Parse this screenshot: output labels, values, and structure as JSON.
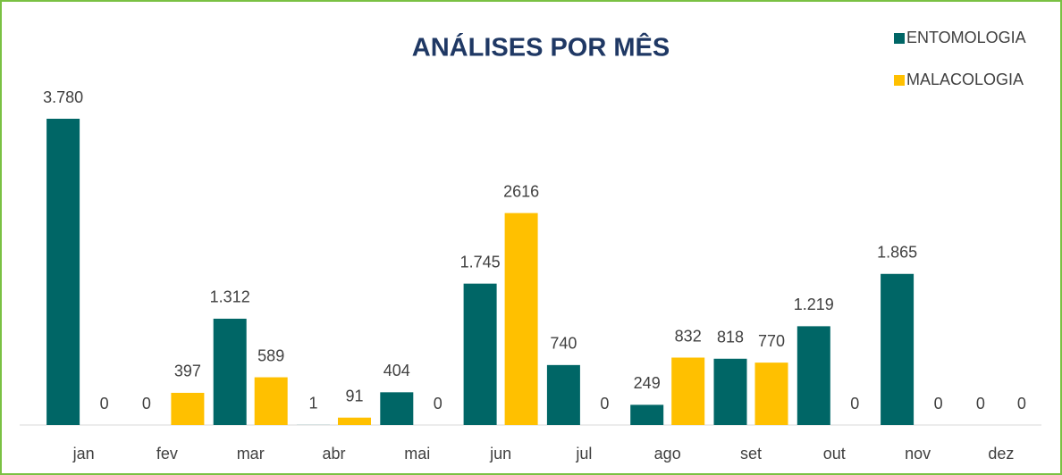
{
  "chart_data": {
    "type": "bar",
    "title": "ANÁLISES POR MÊS",
    "categories": [
      "jan",
      "fev",
      "mar",
      "abr",
      "mai",
      "jun",
      "jul",
      "ago",
      "set",
      "out",
      "nov",
      "dez"
    ],
    "series": [
      {
        "name": "ENTOMOLOGIA",
        "color": "#006666",
        "values": [
          3780,
          0,
          1312,
          1,
          404,
          1745,
          740,
          249,
          818,
          1219,
          1865,
          0
        ],
        "value_labels": [
          "3.780",
          "0",
          "1.312",
          "1",
          "404",
          "1.745",
          "740",
          "249",
          "818",
          "1.219",
          "1.865",
          "0"
        ]
      },
      {
        "name": "MALACOLOGIA",
        "color": "#ffc000",
        "values": [
          0,
          397,
          589,
          91,
          0,
          2616,
          0,
          832,
          770,
          0,
          0,
          0
        ]
      }
    ],
    "legend": "top-right"
  }
}
